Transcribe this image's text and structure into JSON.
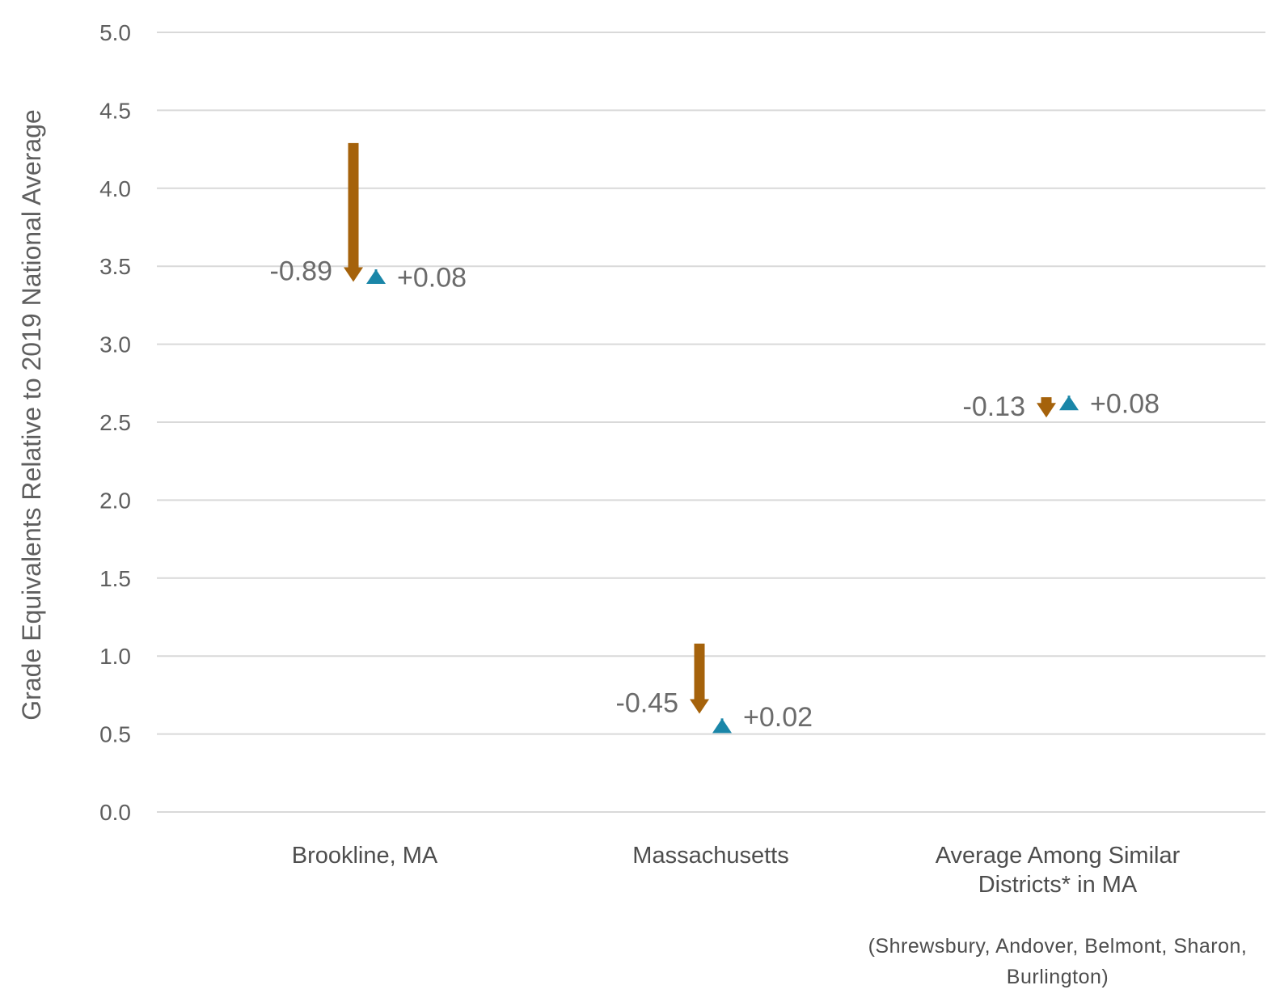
{
  "chart_data": {
    "type": "arrow-change",
    "ylabel": "Grade Equivalents Relative to 2019 National Average",
    "ylim": [
      0,
      5
    ],
    "yticks": [
      "0.0",
      "0.5",
      "1.0",
      "1.5",
      "2.0",
      "2.5",
      "3.0",
      "3.5",
      "4.0",
      "4.5",
      "5.0"
    ],
    "grid": true,
    "categories": [
      {
        "label_lines": [
          "Brookline, MA"
        ],
        "note_lines": []
      },
      {
        "label_lines": [
          "Massachusetts"
        ],
        "note_lines": []
      },
      {
        "label_lines": [
          "Average Among Similar",
          "Districts* in MA"
        ],
        "note_lines": [
          "(Shrewsbury, Andover, Belmont, Sharon,",
          "Burlington)"
        ]
      }
    ],
    "series": [
      {
        "color": "#a5620b",
        "direction": "down",
        "start": [
          4.29,
          1.08,
          2.66
        ],
        "end": [
          3.4,
          0.63,
          2.53
        ],
        "labels": [
          "-0.89",
          "-0.45",
          "-0.13"
        ]
      },
      {
        "color": "#1a86a8",
        "direction": "up",
        "start": [
          3.4,
          0.58,
          2.59
        ],
        "end": [
          3.48,
          0.6,
          2.67
        ],
        "labels": [
          "+0.08",
          "+0.02",
          "+0.08"
        ]
      }
    ]
  }
}
